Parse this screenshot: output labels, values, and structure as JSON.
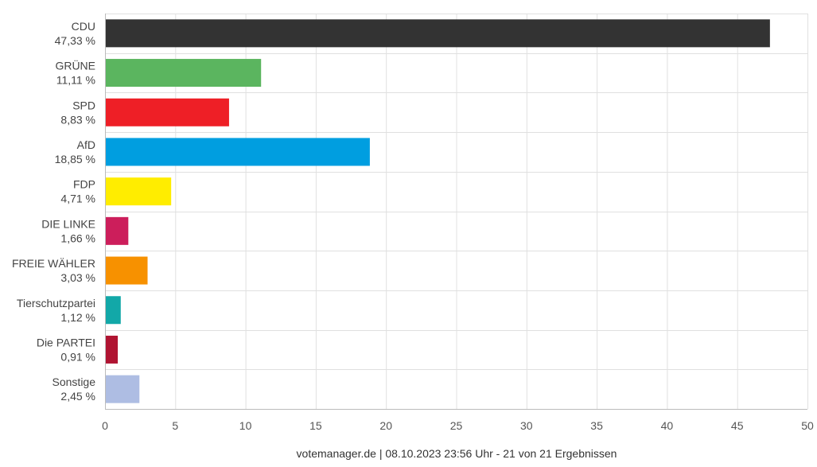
{
  "chart_data": {
    "type": "bar",
    "orientation": "horizontal",
    "categories": [
      "CDU",
      "GRÜNE",
      "SPD",
      "AfD",
      "FDP",
      "DIE LINKE",
      "FREIE WÄHLER",
      "Tierschutzpartei",
      "Die PARTEI",
      "Sonstige"
    ],
    "values": [
      47.33,
      11.11,
      8.83,
      18.85,
      4.71,
      1.66,
      3.03,
      1.12,
      0.91,
      2.45
    ],
    "value_labels": [
      "47,33 %",
      "11,11 %",
      "8,83 %",
      "18,85 %",
      "4,71 %",
      "1,66 %",
      "3,03 %",
      "1,12 %",
      "0,91 %",
      "2,45 %"
    ],
    "colors": [
      "#333333",
      "#5bb55f",
      "#ee1f26",
      "#009ee0",
      "#ffed00",
      "#cc1e5b",
      "#f79100",
      "#12a8a8",
      "#b01432",
      "#aebde3"
    ],
    "xlim": [
      0,
      50
    ],
    "xticks": [
      0,
      5,
      10,
      15,
      20,
      25,
      30,
      35,
      40,
      45,
      50
    ],
    "grid": true,
    "legend": "none"
  },
  "footer": {
    "text": "votemanager.de | 08.10.2023 23:56 Uhr - 21 von 21 Ergebnissen"
  }
}
